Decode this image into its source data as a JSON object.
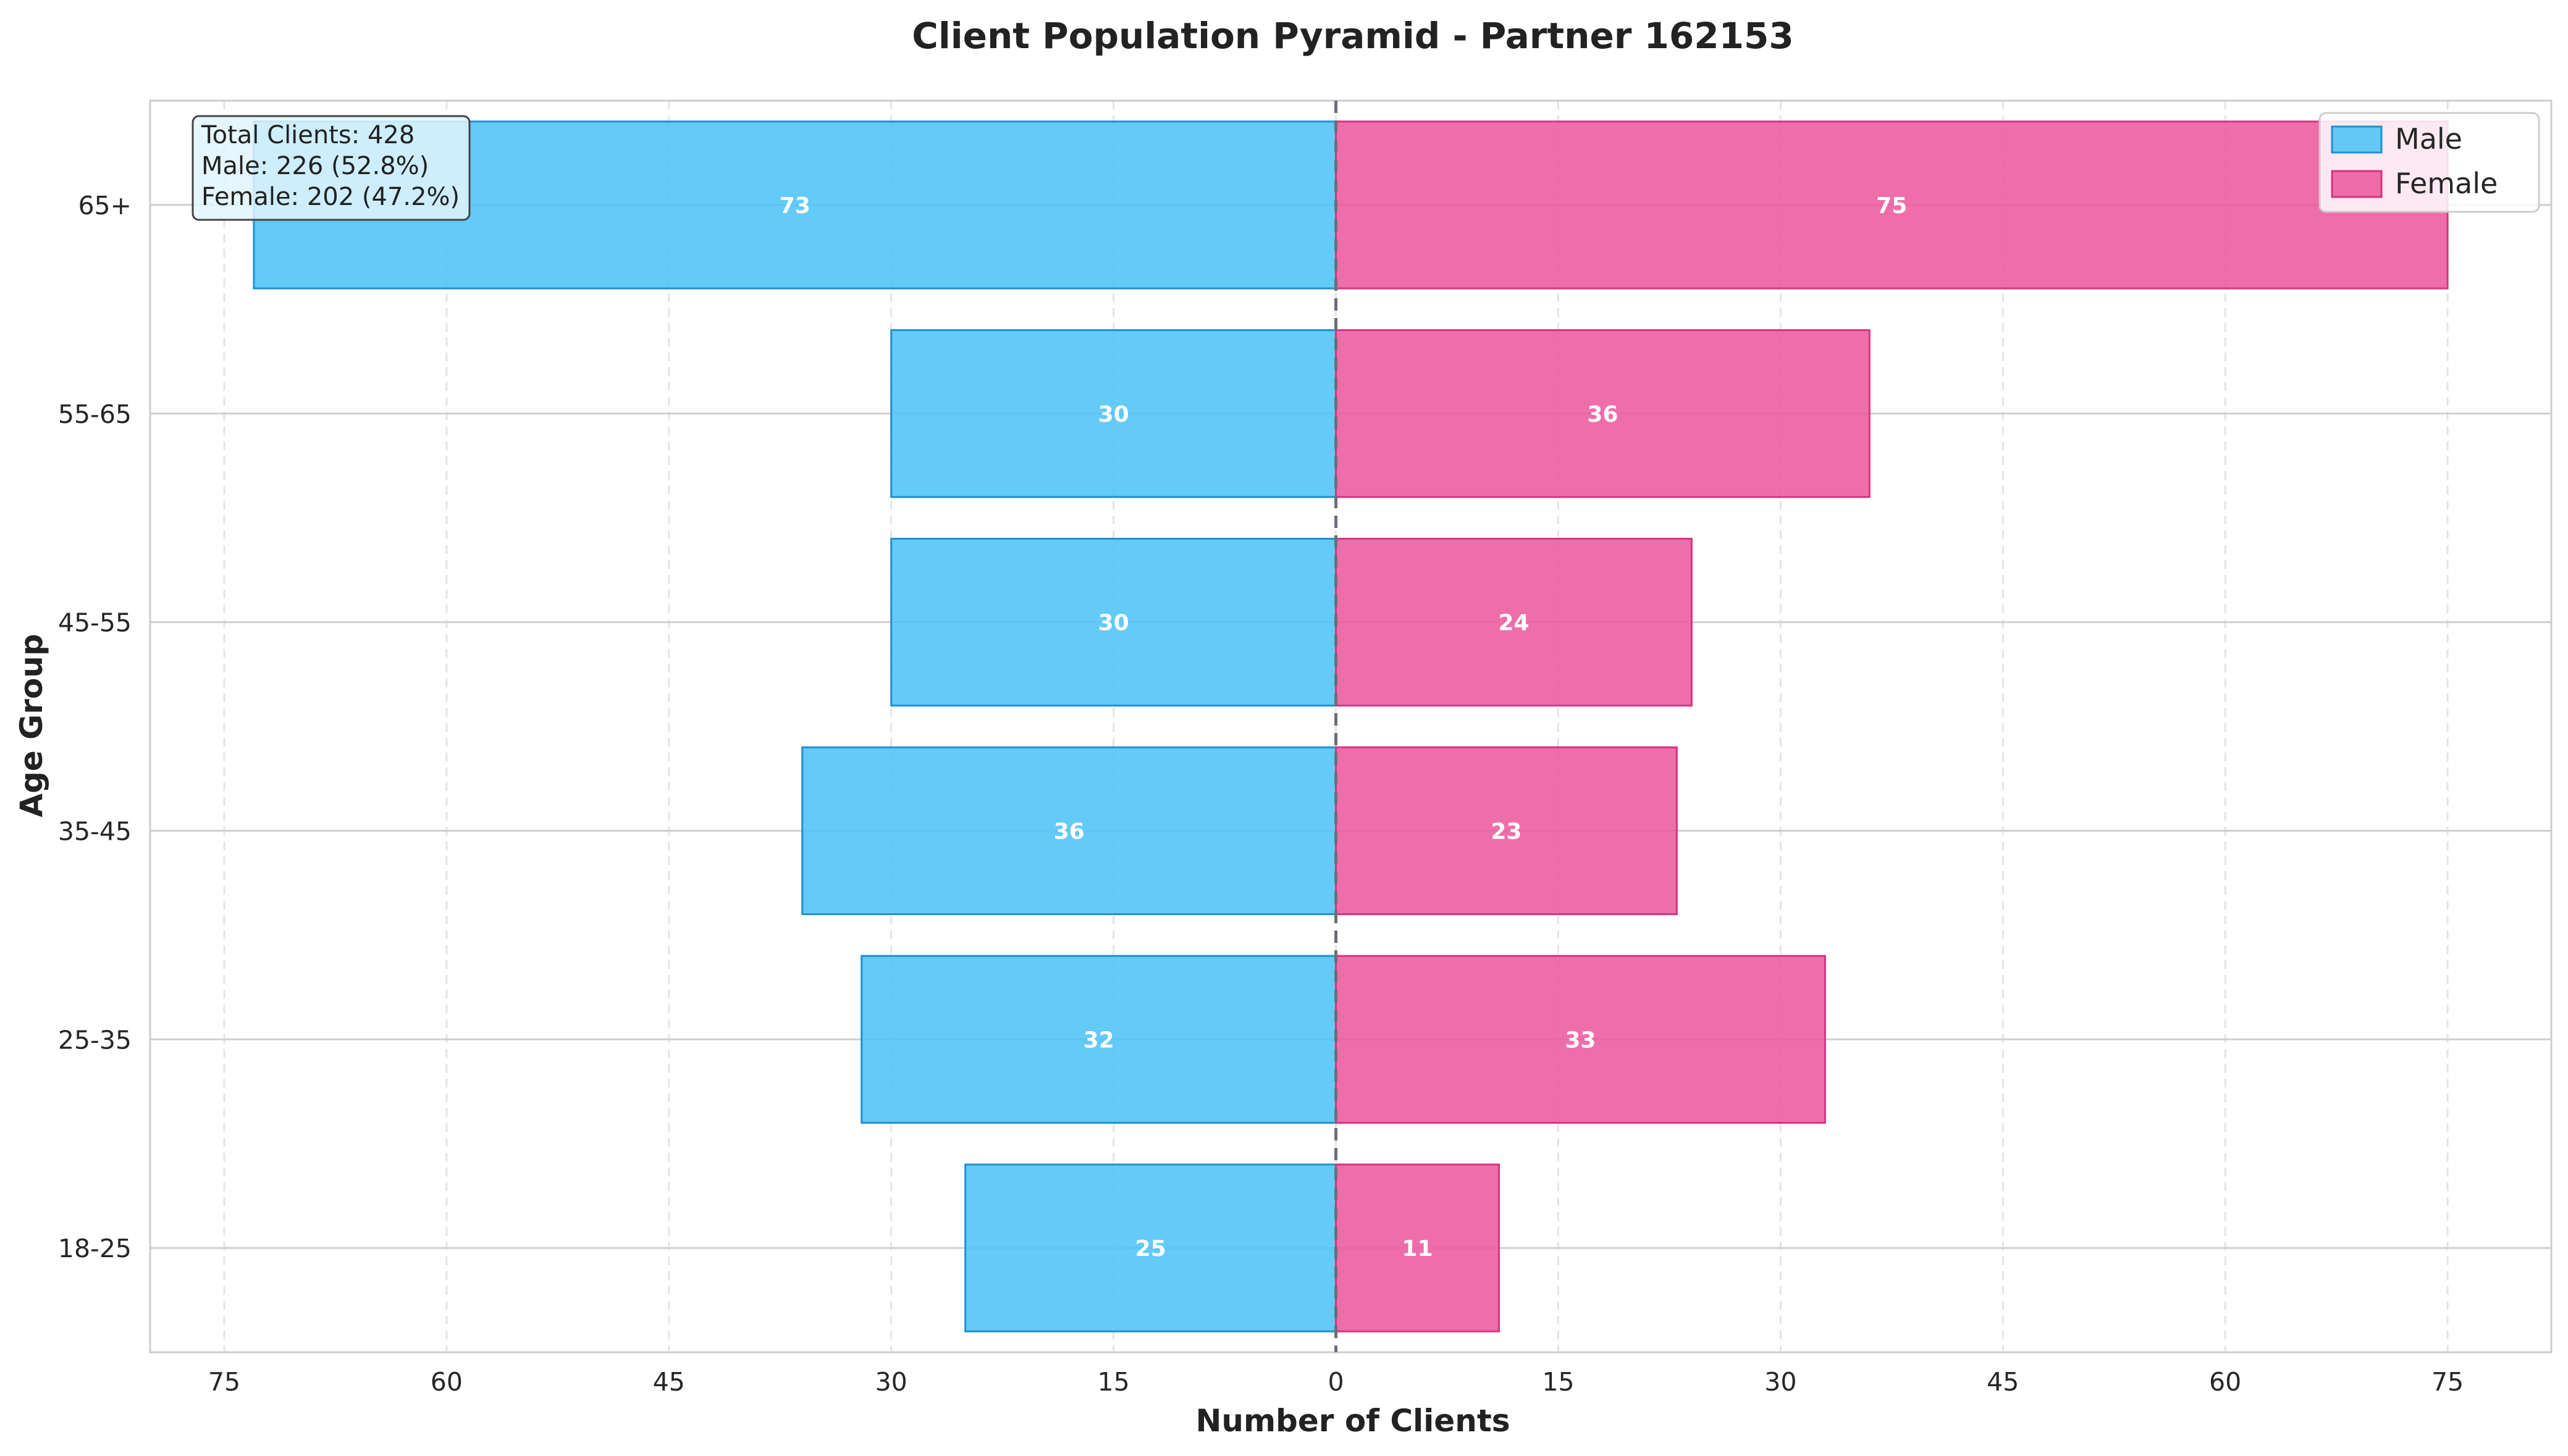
{
  "chart_data": {
    "type": "bar",
    "orientation": "horizontal-pyramid",
    "title": "Client Population Pyramid - Partner 162153",
    "xlabel": "Number of Clients",
    "ylabel": "Age Group",
    "categories": [
      "18-25",
      "25-35",
      "35-45",
      "45-55",
      "55-65",
      "65+"
    ],
    "series": [
      {
        "name": "Male",
        "values": [
          25,
          32,
          36,
          30,
          30,
          73
        ],
        "color": "#4fc3f7",
        "edge": "#1e90d0",
        "side": "left"
      },
      {
        "name": "Female",
        "values": [
          11,
          33,
          23,
          24,
          36,
          75
        ],
        "color": "#ec5a9e",
        "edge": "#d6337f",
        "side": "right"
      }
    ],
    "xlim": [
      -80,
      82
    ],
    "x_ticks": [
      -75,
      -60,
      -45,
      -30,
      -15,
      0,
      15,
      30,
      45,
      60,
      75
    ],
    "x_tick_labels": [
      "75",
      "60",
      "45",
      "30",
      "15",
      "0",
      "15",
      "30",
      "45",
      "60",
      "75"
    ],
    "grid": true,
    "legend_position": "top-right",
    "stats_box": {
      "lines": [
        "Total Clients: 428",
        "Male: 226 (52.8%)",
        "Female: 202 (47.2%)"
      ],
      "position": "top-left"
    }
  }
}
